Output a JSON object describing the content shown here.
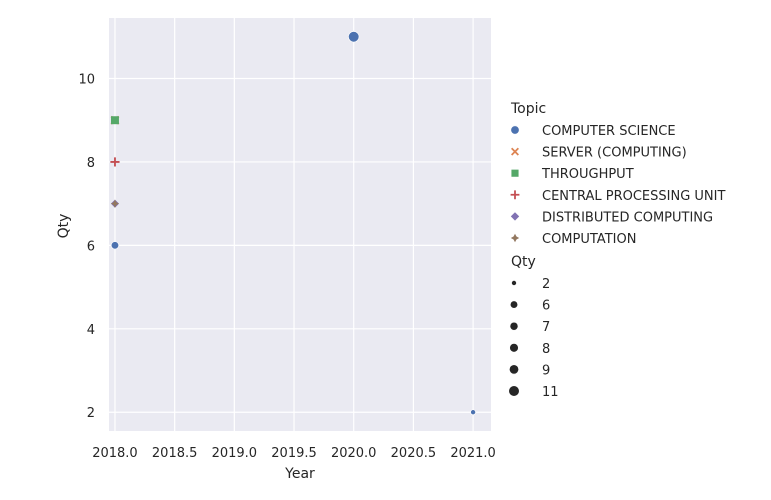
{
  "chart_data": {
    "type": "scatter",
    "title": "",
    "xlabel": "Year",
    "ylabel": "Qty",
    "xlim": [
      2017.95,
      2021.15
    ],
    "ylim": [
      1.55,
      11.45
    ],
    "xticks": [
      "2018.0",
      "2018.5",
      "2019.0",
      "2019.5",
      "2020.0",
      "2020.5",
      "2021.0"
    ],
    "yticks": [
      "2",
      "4",
      "6",
      "8",
      "10"
    ],
    "grid": true,
    "legend_position": "right",
    "hue_legend": {
      "title": "Topic",
      "entries": [
        {
          "label": "COMPUTER SCIENCE",
          "marker": "circle",
          "color": "#4c72b0"
        },
        {
          "label": "SERVER (COMPUTING)",
          "marker": "x",
          "color": "#dd8452"
        },
        {
          "label": "THROUGHPUT",
          "marker": "square",
          "color": "#55a868"
        },
        {
          "label": "CENTRAL PROCESSING UNIT",
          "marker": "plus",
          "color": "#c44e52"
        },
        {
          "label": "DISTRIBUTED COMPUTING",
          "marker": "diamond",
          "color": "#8172b3"
        },
        {
          "label": "COMPUTATION",
          "marker": "star",
          "color": "#937860"
        }
      ]
    },
    "size_legend": {
      "title": "Qty",
      "entries": [
        {
          "label": "2",
          "value": 2
        },
        {
          "label": "6",
          "value": 6
        },
        {
          "label": "7",
          "value": 7
        },
        {
          "label": "8",
          "value": 8
        },
        {
          "label": "9",
          "value": 9
        },
        {
          "label": "11",
          "value": 11
        }
      ]
    },
    "series": [
      {
        "name": "COMPUTER SCIENCE",
        "points": [
          {
            "x": 2018,
            "y": 6
          },
          {
            "x": 2020,
            "y": 11
          },
          {
            "x": 2021,
            "y": 2
          }
        ]
      },
      {
        "name": "SERVER (COMPUTING)",
        "points": [
          {
            "x": 2018,
            "y": 9
          }
        ]
      },
      {
        "name": "THROUGHPUT",
        "points": [
          {
            "x": 2018,
            "y": 9
          }
        ]
      },
      {
        "name": "CENTRAL PROCESSING UNIT",
        "points": [
          {
            "x": 2018,
            "y": 8
          }
        ]
      },
      {
        "name": "DISTRIBUTED COMPUTING",
        "points": [
          {
            "x": 2018,
            "y": 7
          }
        ]
      },
      {
        "name": "COMPUTATION",
        "points": [
          {
            "x": 2018,
            "y": 7
          }
        ]
      }
    ]
  }
}
